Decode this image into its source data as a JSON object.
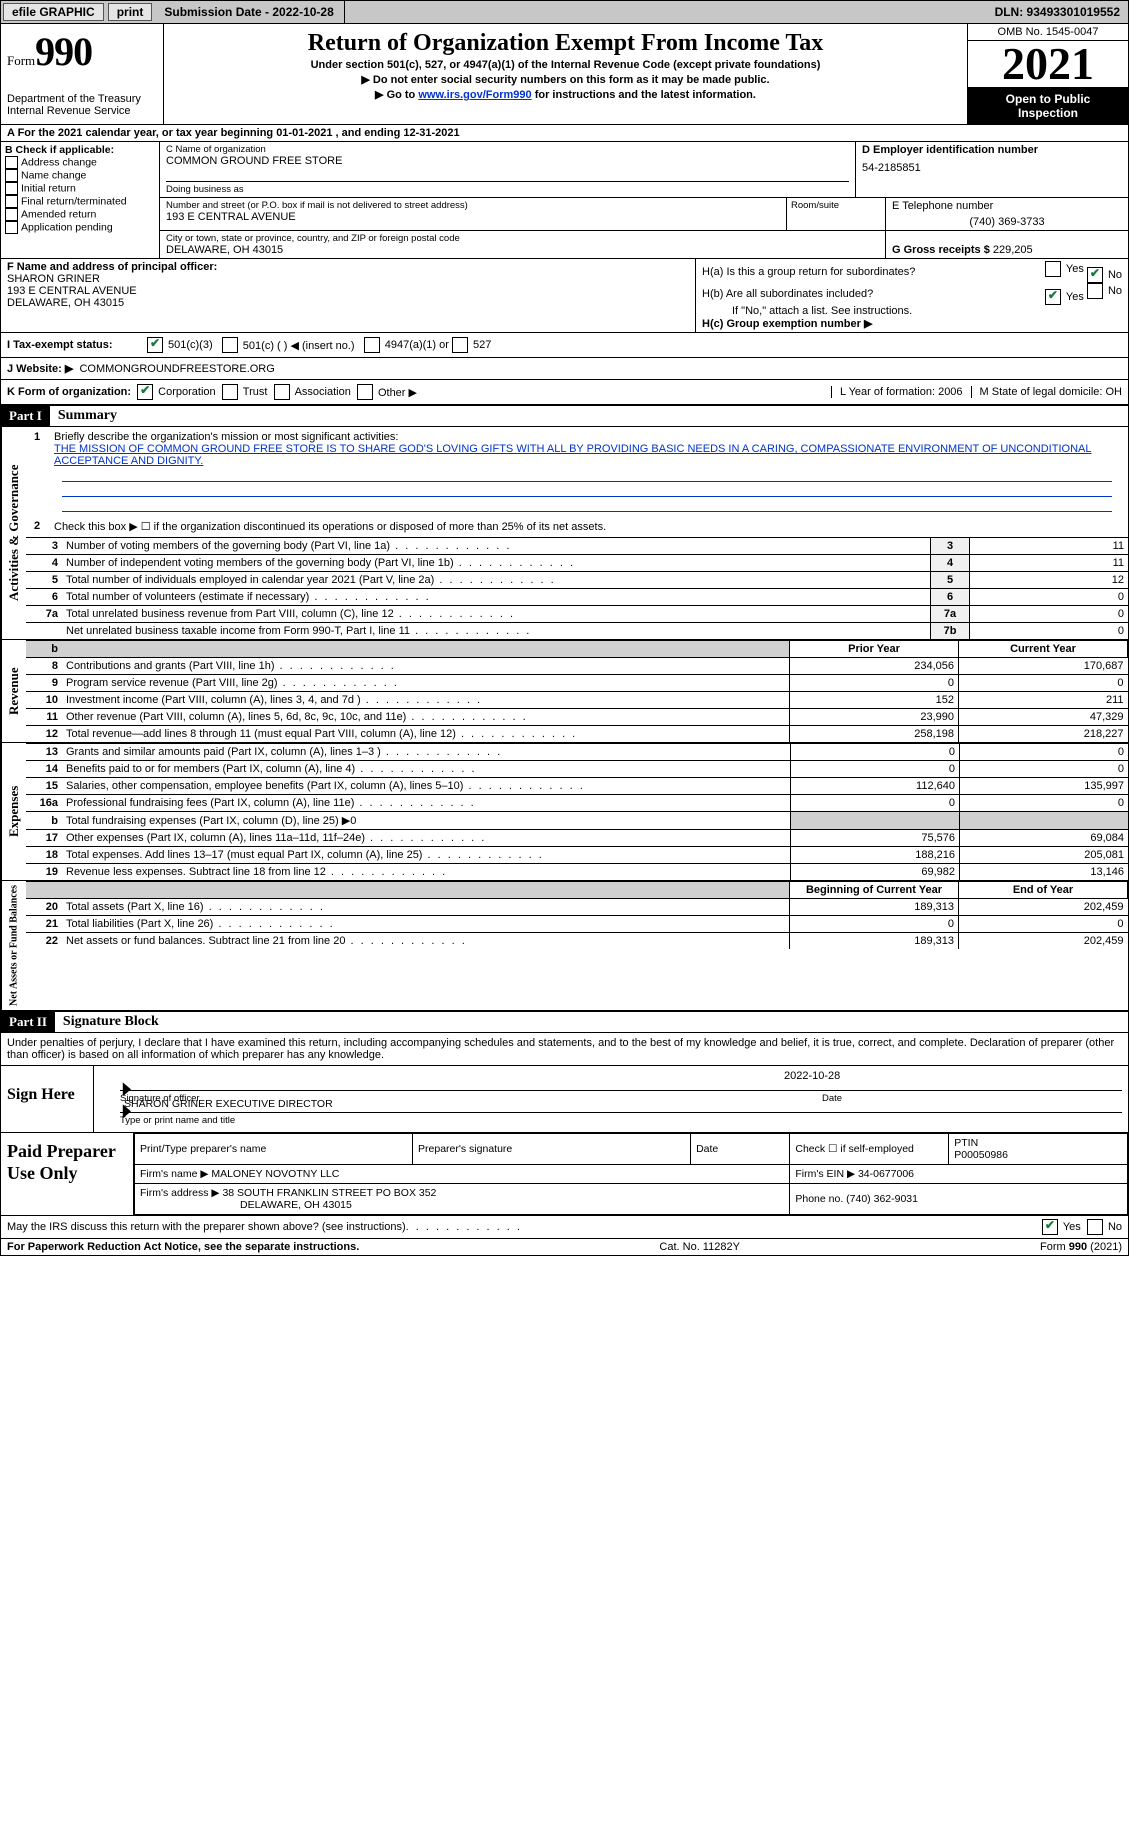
{
  "topbar": {
    "efile": "efile GRAPHIC",
    "print": "print",
    "submission": "Submission Date - 2022-10-28",
    "dln": "DLN: 93493301019552"
  },
  "header": {
    "form_word": "Form",
    "form_num": "990",
    "dept": "Department of the Treasury",
    "irs": "Internal Revenue Service",
    "title": "Return of Organization Exempt From Income Tax",
    "sub1": "Under section 501(c), 527, or 4947(a)(1) of the Internal Revenue Code (except private foundations)",
    "sub2_pre": "▶ Do not enter social security numbers on this form as it may be made public.",
    "sub3_pre": "▶ Go to ",
    "sub3_link": "www.irs.gov/Form990",
    "sub3_post": " for instructions and the latest information.",
    "omb": "OMB No. 1545-0047",
    "year": "2021",
    "open1": "Open to Public",
    "open2": "Inspection"
  },
  "lineA": "A For the 2021 calendar year, or tax year beginning 01-01-2021    , and ending 12-31-2021",
  "colB": {
    "hdr": "B Check if applicable:",
    "items": [
      "Address change",
      "Name change",
      "Initial return",
      "Final return/terminated",
      "Amended return",
      "Application pending"
    ]
  },
  "colC": {
    "name_lbl": "C Name of organization",
    "name": "COMMON GROUND FREE STORE",
    "dba_lbl": "Doing business as",
    "addr_lbl": "Number and street (or P.O. box if mail is not delivered to street address)",
    "addr": "193 E CENTRAL AVENUE",
    "room_lbl": "Room/suite",
    "city_lbl": "City or town, state or province, country, and ZIP or foreign postal code",
    "city": "DELAWARE, OH  43015"
  },
  "colD": {
    "lbl": "D Employer identification number",
    "val": "54-2185851"
  },
  "colE": {
    "lbl": "E Telephone number",
    "val": "(740) 369-3733"
  },
  "colG": {
    "lbl": "G Gross receipts $",
    "val": "229,205"
  },
  "boxF": {
    "lbl": "F Name and address of principal officer:",
    "name": "SHARON GRINER",
    "addr1": "193 E CENTRAL AVENUE",
    "addr2": "DELAWARE, OH  43015"
  },
  "boxH": {
    "a": "H(a)  Is this a group return for subordinates?",
    "b": "H(b)  Are all subordinates included?",
    "b_note": "If \"No,\" attach a list. See instructions.",
    "c": "H(c)  Group exemption number ▶"
  },
  "taxI": {
    "lbl": "I   Tax-exempt status:",
    "o1": "501(c)(3)",
    "o2": "501(c) (  ) ◀ (insert no.)",
    "o3": "4947(a)(1) or",
    "o4": "527"
  },
  "webJ": {
    "lbl": "J   Website: ▶",
    "val": "COMMONGROUNDFREESTORE.ORG"
  },
  "korg": {
    "lbl": "K Form of organization:",
    "opts": [
      "Corporation",
      "Trust",
      "Association",
      "Other ▶"
    ],
    "l": "L Year of formation: 2006",
    "m": "M State of legal domicile: OH"
  },
  "part1": {
    "hdr": "Part I",
    "title": "Summary"
  },
  "mission_lbl": "Briefly describe the organization's mission or most significant activities:",
  "mission": "THE MISSION OF COMMON GROUND FREE STORE IS TO SHARE GOD'S LOVING GIFTS WITH ALL BY PROVIDING BASIC NEEDS IN A CARING, COMPASSIONATE ENVIRONMENT OF UNCONDITIONAL ACCEPTANCE AND DIGNITY.",
  "line2": "Check this box ▶ ☐  if the organization discontinued its operations or disposed of more than 25% of its net assets.",
  "gov_rows": [
    {
      "n": "3",
      "d": "Number of voting members of the governing body (Part VI, line 1a)",
      "r": "3",
      "v": "11"
    },
    {
      "n": "4",
      "d": "Number of independent voting members of the governing body (Part VI, line 1b)",
      "r": "4",
      "v": "11"
    },
    {
      "n": "5",
      "d": "Total number of individuals employed in calendar year 2021 (Part V, line 2a)",
      "r": "5",
      "v": "12"
    },
    {
      "n": "6",
      "d": "Total number of volunteers (estimate if necessary)",
      "r": "6",
      "v": "0"
    },
    {
      "n": "7a",
      "d": "Total unrelated business revenue from Part VIII, column (C), line 12",
      "r": "7a",
      "v": "0"
    },
    {
      "n": "",
      "d": "Net unrelated business taxable income from Form 990-T, Part I, line 11",
      "r": "7b",
      "v": "0"
    }
  ],
  "col_hdrs": {
    "prior": "Prior Year",
    "curr": "Current Year",
    "boy": "Beginning of Current Year",
    "eoy": "End of Year"
  },
  "rev_rows": [
    {
      "n": "8",
      "d": "Contributions and grants (Part VIII, line 1h)",
      "p": "234,056",
      "c": "170,687"
    },
    {
      "n": "9",
      "d": "Program service revenue (Part VIII, line 2g)",
      "p": "0",
      "c": "0"
    },
    {
      "n": "10",
      "d": "Investment income (Part VIII, column (A), lines 3, 4, and 7d )",
      "p": "152",
      "c": "211"
    },
    {
      "n": "11",
      "d": "Other revenue (Part VIII, column (A), lines 5, 6d, 8c, 9c, 10c, and 11e)",
      "p": "23,990",
      "c": "47,329"
    },
    {
      "n": "12",
      "d": "Total revenue—add lines 8 through 11 (must equal Part VIII, column (A), line 12)",
      "p": "258,198",
      "c": "218,227"
    }
  ],
  "exp_rows": [
    {
      "n": "13",
      "d": "Grants and similar amounts paid (Part IX, column (A), lines 1–3 )",
      "p": "0",
      "c": "0"
    },
    {
      "n": "14",
      "d": "Benefits paid to or for members (Part IX, column (A), line 4)",
      "p": "0",
      "c": "0"
    },
    {
      "n": "15",
      "d": "Salaries, other compensation, employee benefits (Part IX, column (A), lines 5–10)",
      "p": "112,640",
      "c": "135,997"
    },
    {
      "n": "16a",
      "d": "Professional fundraising fees (Part IX, column (A), line 11e)",
      "p": "0",
      "c": "0"
    },
    {
      "n": "b",
      "d": "Total fundraising expenses (Part IX, column (D), line 25) ▶0",
      "p": "",
      "c": "",
      "grey": true
    },
    {
      "n": "17",
      "d": "Other expenses (Part IX, column (A), lines 11a–11d, 11f–24e)",
      "p": "75,576",
      "c": "69,084"
    },
    {
      "n": "18",
      "d": "Total expenses. Add lines 13–17 (must equal Part IX, column (A), line 25)",
      "p": "188,216",
      "c": "205,081"
    },
    {
      "n": "19",
      "d": "Revenue less expenses. Subtract line 18 from line 12",
      "p": "69,982",
      "c": "13,146"
    }
  ],
  "na_rows": [
    {
      "n": "20",
      "d": "Total assets (Part X, line 16)",
      "p": "189,313",
      "c": "202,459"
    },
    {
      "n": "21",
      "d": "Total liabilities (Part X, line 26)",
      "p": "0",
      "c": "0"
    },
    {
      "n": "22",
      "d": "Net assets or fund balances. Subtract line 21 from line 20",
      "p": "189,313",
      "c": "202,459"
    }
  ],
  "vlabels": {
    "gov": "Activities & Governance",
    "rev": "Revenue",
    "exp": "Expenses",
    "na": "Net Assets or Fund Balances"
  },
  "part2": {
    "hdr": "Part II",
    "title": "Signature Block"
  },
  "penalty": "Under penalties of perjury, I declare that I have examined this return, including accompanying schedules and statements, and to the best of my knowledge and belief, it is true, correct, and complete. Declaration of preparer (other than officer) is based on all information of which preparer has any knowledge.",
  "sign": {
    "lbl": "Sign Here",
    "sig_cap": "Signature of officer",
    "date": "2022-10-28",
    "date_cap": "Date",
    "name": "SHARON GRINER  EXECUTIVE DIRECTOR",
    "name_cap": "Type or print name and title"
  },
  "paid": {
    "lbl": "Paid Preparer Use Only",
    "c1": "Print/Type preparer's name",
    "c2": "Preparer's signature",
    "c3": "Date",
    "c4a": "Check ☐ if self-employed",
    "c4b": "PTIN",
    "ptin": "P00050986",
    "firm_lbl": "Firm's name    ▶",
    "firm": "MALONEY NOVOTNY LLC",
    "ein_lbl": "Firm's EIN ▶",
    "ein": "34-0677006",
    "addr_lbl": "Firm's address ▶",
    "addr1": "38 SOUTH FRANKLIN STREET PO BOX 352",
    "addr2": "DELAWARE, OH  43015",
    "phone_lbl": "Phone no.",
    "phone": "(740) 362-9031"
  },
  "discuss": "May the IRS discuss this return with the preparer shown above? (see instructions)",
  "footer": {
    "l": "For Paperwork Reduction Act Notice, see the separate instructions.",
    "m": "Cat. No. 11282Y",
    "r": "Form 990 (2021)"
  }
}
